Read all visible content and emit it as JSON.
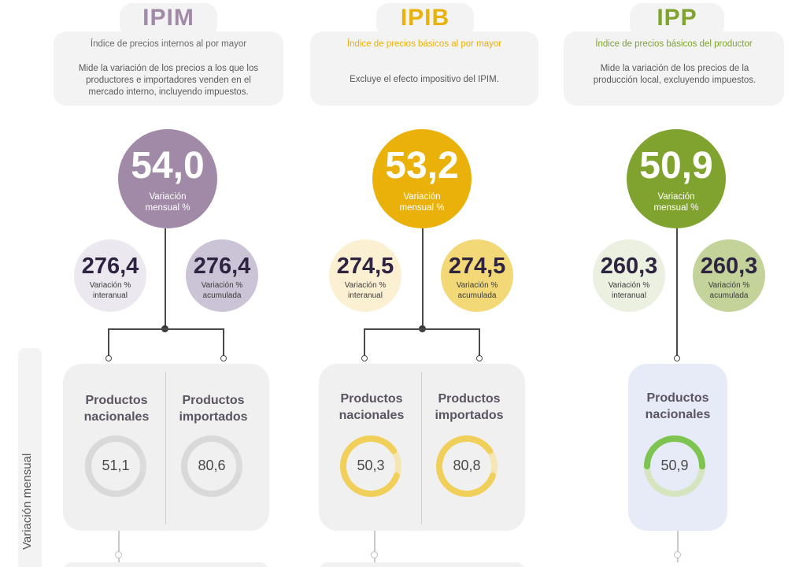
{
  "colors": {
    "ipim": "#a08aa8",
    "ipim_light": "#ece8ef",
    "ipim_mid": "#cbc3d6",
    "ipib": "#e9b10a",
    "ipib_light": "#fbf0d2",
    "ipib_mid": "#f3d878",
    "ipp": "#7fa32e",
    "ipp_light": "#ecf0e1",
    "ipp_mid": "#c3d39a",
    "ipp_panel": "#e6ebf7",
    "panel_gray": "#f0f0f0"
  },
  "side_label": "Variación mensual",
  "columns": [
    {
      "key": "ipim",
      "title": "IPIM",
      "subtitle": "Índice de precios internos al por mayor",
      "description": "Mide la variación de los precios a los que los productores e importadores venden en el mercado interno, incluyendo impuestos.",
      "monthly": {
        "value": "54,0",
        "label": "Variación mensual %"
      },
      "annual": {
        "value": "276,4",
        "label": "Variación % interanual"
      },
      "accumulated": {
        "value": "276,4",
        "label": "Variación % acumulada"
      },
      "products": [
        {
          "label": "Productos nacionales",
          "value": "51,1",
          "progress": 0.85
        },
        {
          "label": "Productos importados",
          "value": "80,6",
          "progress": 0.85
        }
      ]
    },
    {
      "key": "ipib",
      "title": "IPIB",
      "subtitle": "Índice de precios básicos al por mayor",
      "description": "Excluye el efecto impositivo del IPIM.",
      "monthly": {
        "value": "53,2",
        "label": "Variación mensual %"
      },
      "annual": {
        "value": "274,5",
        "label": "Variación % interanual"
      },
      "accumulated": {
        "value": "274,5",
        "label": "Variación % acumulada"
      },
      "products": [
        {
          "label": "Productos nacionales",
          "value": "50,3",
          "progress": 0.85
        },
        {
          "label": "Productos importados",
          "value": "80,8",
          "progress": 0.85
        }
      ]
    },
    {
      "key": "ipp",
      "title": "IPP",
      "subtitle": "Índice de precios básicos del productor",
      "description": "Mide la variación de los precios de la producción local, excluyendo impuestos.",
      "monthly": {
        "value": "50,9",
        "label": "Variación mensual %"
      },
      "annual": {
        "value": "260,3",
        "label": "Variación % interanual"
      },
      "accumulated": {
        "value": "260,3",
        "label": "Variación % acumulada"
      },
      "products": [
        {
          "label": "Productos nacionales",
          "value": "50,9",
          "progress": 0.5
        }
      ]
    }
  ]
}
